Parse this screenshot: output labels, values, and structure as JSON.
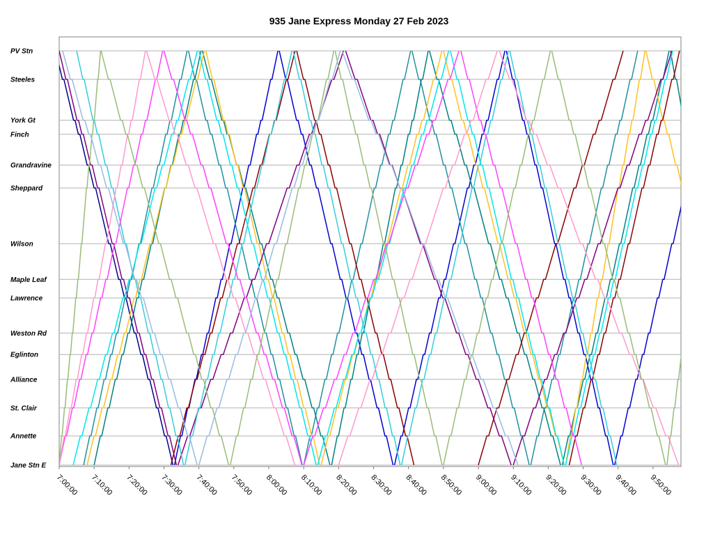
{
  "chart_data": {
    "type": "line",
    "title": "935 Jane Express Monday 27 Feb 2023",
    "x_axis": {
      "unit": "time",
      "range": [
        "7:00:00",
        "9:58:00"
      ],
      "tick_labels": [
        "7:00:00",
        "7:10:00",
        "7:20:00",
        "7:30:00",
        "7:40:00",
        "7:50:00",
        "8:00:00",
        "8:10:00",
        "8:20:00",
        "8:30:00",
        "8:40:00",
        "8:50:00",
        "9:00:00",
        "9:10:00",
        "9:20:00",
        "9:30:00",
        "9:40:00",
        "9:50:00"
      ]
    },
    "y_axis": {
      "stops": [
        {
          "name": "PV Stn",
          "km": 0.0
        },
        {
          "name": "Steeles",
          "km": 1.0
        },
        {
          "name": "York Gt",
          "km": 2.43
        },
        {
          "name": "Finch",
          "km": 2.92
        },
        {
          "name": "Grandravine",
          "km": 4.0
        },
        {
          "name": "Sheppard",
          "km": 4.8
        },
        {
          "name": "Wilson",
          "km": 6.75
        },
        {
          "name": "Maple Leaf",
          "km": 8.0
        },
        {
          "name": "Lawrence",
          "km": 8.65
        },
        {
          "name": "Weston Rd",
          "km": 9.88
        },
        {
          "name": "Eglinton",
          "km": 10.63
        },
        {
          "name": "Alliance",
          "km": 11.5
        },
        {
          "name": "St. Clair",
          "km": 12.5
        },
        {
          "name": "Annette",
          "km": 13.48
        },
        {
          "name": "Jane Stn E",
          "km": 14.5
        }
      ]
    },
    "grid": "horizontal lines at stops",
    "legend": "none",
    "direction_codes": {
      "S": "southbound from PV Stn to Jane Stn E",
      "N": "northbound from Jane Stn E to PV Stn"
    },
    "trips": [
      {
        "color": "#00008b",
        "dir": "S",
        "start": "6:59:00",
        "end": "7:33:00"
      },
      {
        "color": "#0000cd",
        "dir": "N",
        "start": "7:33:00",
        "end": "8:03:00"
      },
      {
        "color": "#0000cd",
        "dir": "S",
        "start": "8:03:00",
        "end": "8:36:00"
      },
      {
        "color": "#0000cd",
        "dir": "N",
        "start": "8:36:00",
        "end": "9:08:00"
      },
      {
        "color": "#0000cd",
        "dir": "S",
        "start": "9:08:00",
        "end": "9:39:00"
      },
      {
        "color": "#0000cd",
        "dir": "N",
        "start": "9:39:00",
        "end": "10:10:00"
      },
      {
        "color": "#1e90a0",
        "dir": "N",
        "start": "7:07:00",
        "end": "7:37:00"
      },
      {
        "color": "#1e90a0",
        "dir": "S",
        "start": "7:37:00",
        "end": "8:10:00"
      },
      {
        "color": "#1e90a0",
        "dir": "N",
        "start": "8:10:00",
        "end": "8:41:00"
      },
      {
        "color": "#1e90a0",
        "dir": "S",
        "start": "8:41:00",
        "end": "9:15:00"
      },
      {
        "color": "#1e90a0",
        "dir": "N",
        "start": "9:15:00",
        "end": "9:46:00"
      },
      {
        "color": "#008080",
        "dir": "N",
        "start": "7:10:00",
        "end": "7:41:00"
      },
      {
        "color": "#008080",
        "dir": "S",
        "start": "7:41:00",
        "end": "8:18:00"
      },
      {
        "color": "#008080",
        "dir": "N",
        "start": "8:18:00",
        "end": "8:46:00"
      },
      {
        "color": "#008080",
        "dir": "S",
        "start": "8:46:00",
        "end": "9:24:00"
      },
      {
        "color": "#008080",
        "dir": "N",
        "start": "9:24:00",
        "end": "9:55:00"
      },
      {
        "color": "#008080",
        "dir": "S",
        "start": "9:55:00",
        "end": "10:20:00"
      },
      {
        "color": "#ffc020",
        "dir": "N",
        "start": "6:57:00",
        "end": "7:00:00"
      },
      {
        "color": "#ffc020",
        "dir": "N",
        "start": "7:08:00",
        "end": "7:42:00"
      },
      {
        "color": "#ffc020",
        "dir": "S",
        "start": "7:42:00",
        "end": "8:15:00"
      },
      {
        "color": "#ffc020",
        "dir": "N",
        "start": "8:15:00",
        "end": "8:50:00"
      },
      {
        "color": "#ffc020",
        "dir": "S",
        "start": "8:50:00",
        "end": "9:25:00"
      },
      {
        "color": "#ffc020",
        "dir": "N",
        "start": "9:25:00",
        "end": "9:48:00"
      },
      {
        "color": "#ffc020",
        "dir": "S",
        "start": "9:48:00",
        "end": "10:20:00"
      },
      {
        "color": "#8b0000",
        "dir": "N",
        "start": "7:32:00",
        "end": "8:08:00"
      },
      {
        "color": "#8b0000",
        "dir": "S",
        "start": "8:08:00",
        "end": "8:42:00"
      },
      {
        "color": "#8b0000",
        "dir": "N",
        "start": "9:00:00",
        "end": "9:42:00"
      },
      {
        "color": "#8b0000",
        "dir": "N",
        "start": "9:26:00",
        "end": "9:58:00"
      },
      {
        "color": "#800080",
        "dir": "S",
        "start": "7:00:00",
        "end": "7:34:00"
      },
      {
        "color": "#800080",
        "dir": "N",
        "start": "7:34:00",
        "end": "8:22:00"
      },
      {
        "color": "#800080",
        "dir": "S",
        "start": "8:22:00",
        "end": "9:10:00"
      },
      {
        "color": "#800080",
        "dir": "N",
        "start": "9:10:00",
        "end": "9:56:00"
      },
      {
        "color": "#00e5ee",
        "dir": "N",
        "start": "7:04:00",
        "end": "7:40:00"
      },
      {
        "color": "#00e5ee",
        "dir": "S",
        "start": "7:40:00",
        "end": "8:14:00"
      },
      {
        "color": "#00e5ee",
        "dir": "N",
        "start": "8:14:00",
        "end": "8:52:00"
      },
      {
        "color": "#00e5ee",
        "dir": "S",
        "start": "8:52:00",
        "end": "9:25:00"
      },
      {
        "color": "#00e5ee",
        "dir": "N",
        "start": "9:25:00",
        "end": "9:56:00"
      },
      {
        "color": "#33ccdd",
        "dir": "S",
        "start": "7:05:00",
        "end": "7:36:00"
      },
      {
        "color": "#33ccdd",
        "dir": "N",
        "start": "7:36:00",
        "end": "8:07:00"
      },
      {
        "color": "#33ccdd",
        "dir": "S",
        "start": "8:07:00",
        "end": "8:38:00"
      },
      {
        "color": "#33ccdd",
        "dir": "N",
        "start": "8:38:00",
        "end": "9:09:00"
      },
      {
        "color": "#33ccdd",
        "dir": "S",
        "start": "9:09:00",
        "end": "9:40:00"
      },
      {
        "color": "#ff40ff",
        "dir": "N",
        "start": "7:00:00",
        "end": "7:30:00"
      },
      {
        "color": "#ff40ff",
        "dir": "S",
        "start": "7:30:00",
        "end": "8:10:00"
      },
      {
        "color": "#ff40ff",
        "dir": "N",
        "start": "8:10:00",
        "end": "8:55:00"
      },
      {
        "color": "#ff40ff",
        "dir": "S",
        "start": "8:55:00",
        "end": "9:30:00"
      },
      {
        "color": "#ff99cc",
        "dir": "N",
        "start": "7:00:00",
        "end": "7:25:00"
      },
      {
        "color": "#ff99cc",
        "dir": "S",
        "start": "7:25:00",
        "end": "8:08:00"
      },
      {
        "color": "#ff99cc",
        "dir": "N",
        "start": "8:20:00",
        "end": "9:06:00"
      },
      {
        "color": "#ff99cc",
        "dir": "S",
        "start": "9:06:00",
        "end": "9:58:00"
      },
      {
        "color": "#99bb77",
        "dir": "N",
        "start": "7:00:00",
        "end": "7:12:00"
      },
      {
        "color": "#99bb77",
        "dir": "S",
        "start": "7:12:00",
        "end": "7:49:00"
      },
      {
        "color": "#99bb77",
        "dir": "N",
        "start": "7:49:00",
        "end": "8:19:00"
      },
      {
        "color": "#99bb77",
        "dir": "S",
        "start": "8:19:00",
        "end": "8:50:00"
      },
      {
        "color": "#99bb77",
        "dir": "N",
        "start": "8:50:00",
        "end": "9:21:00"
      },
      {
        "color": "#99bb77",
        "dir": "S",
        "start": "9:21:00",
        "end": "9:54:00"
      },
      {
        "color": "#99bb77",
        "dir": "N",
        "start": "9:54:00",
        "end": "10:10:00"
      },
      {
        "color": "#99bbdd",
        "dir": "S",
        "start": "7:01:00",
        "end": "7:40:00"
      },
      {
        "color": "#99bbdd",
        "dir": "N",
        "start": "7:40:00",
        "end": "8:21:00"
      },
      {
        "color": "#99bbdd",
        "dir": "S",
        "start": "8:21:00",
        "end": "9:12:00"
      }
    ]
  }
}
